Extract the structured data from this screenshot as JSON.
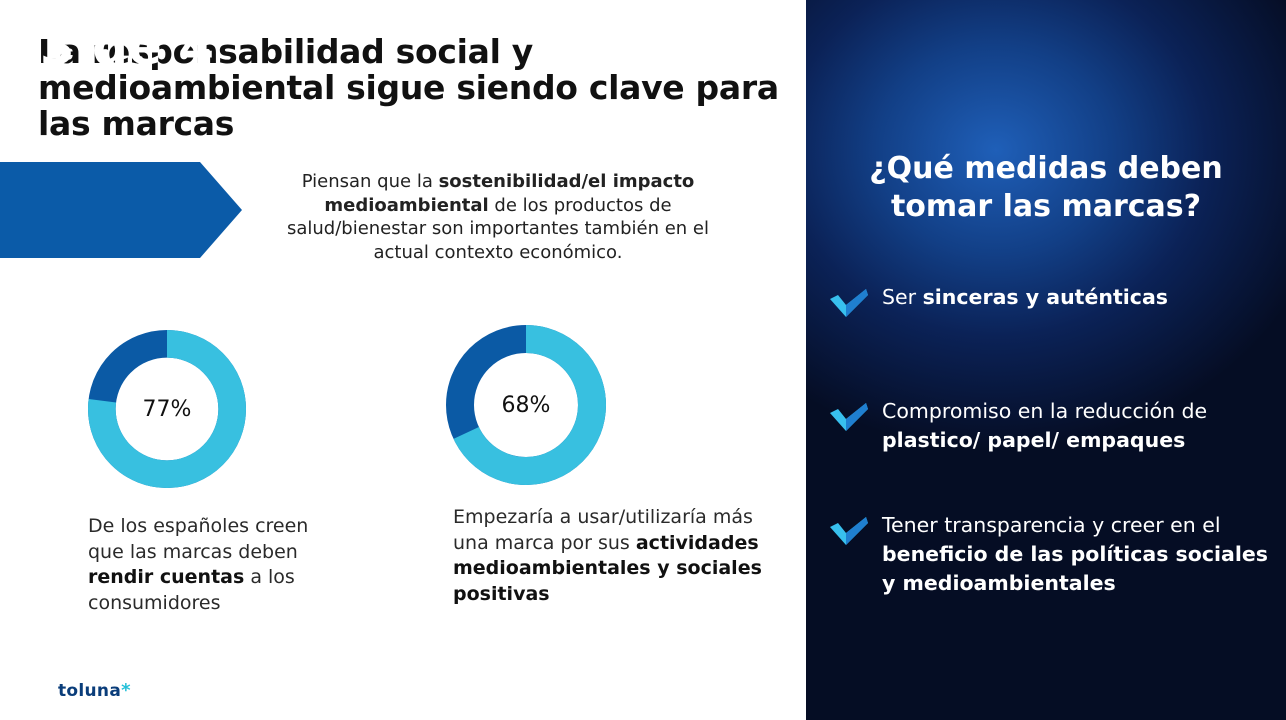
{
  "title": "La responsabilidad social y medioambiental sigue siendo clave para las marcas",
  "banner": {
    "text": "3 de 4"
  },
  "stat_description": {
    "part1": "Piensan que la ",
    "bold1": "sostenibilidad/el impacto medioambiental",
    "part2": " de los productos de salud/bienestar son  importantes también en el actual contexto económico."
  },
  "donuts": [
    {
      "value": 77,
      "label": "77%",
      "colors": {
        "main": "#38c0e0",
        "rest": "#0b5aa5"
      }
    },
    {
      "value": 68,
      "label": "68%",
      "colors": {
        "main": "#38c0e0",
        "rest": "#0b5aa5"
      }
    }
  ],
  "caption1": {
    "part1": "De los españoles creen que las marcas deben ",
    "bold1": "rendir cuentas",
    "part2": " a los consumidores"
  },
  "caption2": {
    "part1": "Empezaría a usar/utilizaría más una marca por sus ",
    "bold1": "actividades medioambientales y sociales positivas"
  },
  "logo": {
    "name": "toluna",
    "star": "*"
  },
  "right_panel": {
    "question": "¿Qué medidas deben tomar las marcas?",
    "items": [
      {
        "plain": "Ser ",
        "bold": "sinceras y auténticas",
        "after": ""
      },
      {
        "plain": "Compromiso en la reducción de ",
        "bold": "plastico/ papel/ empaques",
        "after": ""
      },
      {
        "plain": "Tener transparencia y creer en el ",
        "bold": "beneficio de las políticas sociales y medioambientales",
        "after": ""
      }
    ],
    "check_icon": "check-icon",
    "colors": {
      "check_light": "#38c0ee",
      "check_dark": "#1f7fd0"
    }
  }
}
